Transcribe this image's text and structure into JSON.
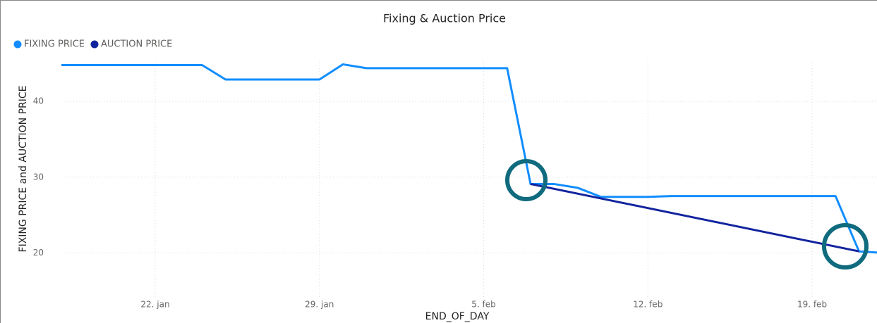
{
  "chart_data": {
    "type": "line",
    "title": "Fixing & Auction Price",
    "x_label": "END_OF_DAY",
    "y_label": "FIXING PRICE and AUCTION PRICE",
    "x": [
      "18. jan",
      "19. jan",
      "20. jan",
      "21. jan",
      "22. jan",
      "23. jan",
      "24. jan",
      "25. jan",
      "26. jan",
      "27. jan",
      "28. jan",
      "29. jan",
      "30. jan",
      "31. jan",
      "1. feb",
      "2. feb",
      "3. feb",
      "4. feb",
      "5. feb",
      "6. feb",
      "7. feb",
      "8. feb",
      "9. feb",
      "10. feb",
      "11. feb",
      "12. feb",
      "13. feb",
      "14. feb",
      "15. feb",
      "16. feb",
      "17. feb",
      "18. feb",
      "19. feb",
      "20. feb",
      "21. feb",
      "22. feb"
    ],
    "xticks": [
      "22. jan",
      "29. jan",
      "5. feb",
      "12. feb",
      "19. feb"
    ],
    "series": [
      {
        "name": "FIXING PRICE",
        "color": "#118DFF",
        "values": [
          44.8,
          44.8,
          44.8,
          44.8,
          44.8,
          44.8,
          44.8,
          42.9,
          42.9,
          42.9,
          42.9,
          42.9,
          44.9,
          44.4,
          44.4,
          44.4,
          44.4,
          44.4,
          44.4,
          44.4,
          29.1,
          29.1,
          28.6,
          27.4,
          27.4,
          27.4,
          27.5,
          27.5,
          27.5,
          27.5,
          27.5,
          27.5,
          27.5,
          27.5,
          20.2,
          20.0
        ]
      },
      {
        "name": "AUCTION PRICE",
        "color": "#12239E",
        "x": [
          "7. feb",
          "21. feb"
        ],
        "values": [
          29.1,
          20.2
        ]
      }
    ],
    "ylim": [
      13.9,
      45.5
    ],
    "yticks": [
      20,
      30,
      40
    ],
    "grid": true,
    "legend": "top-left"
  }
}
